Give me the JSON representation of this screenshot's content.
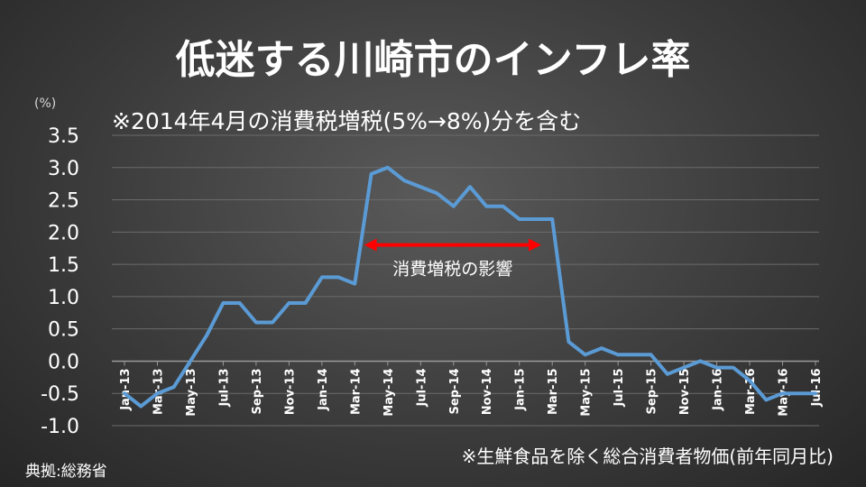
{
  "title": "低迷する川崎市のインフレ率",
  "subtitle": "※2014年4月の消費税増税(5%→8%)分を含む",
  "y_unit": "(%)",
  "source": "典拠:総務省",
  "note": "※生鮮食品を除く総合消費者物価(前年同月比)",
  "colors": {
    "line": "#5b9bd5",
    "arrow": "#ff0000",
    "axis_text": "#ffffff",
    "grid": "#6b6b6b",
    "background": "#3a3a3a"
  },
  "chart_data": {
    "type": "line",
    "x": [
      "Jan-13",
      "Feb-13",
      "Mar-13",
      "Apr-13",
      "May-13",
      "Jun-13",
      "Jul-13",
      "Aug-13",
      "Sep-13",
      "Oct-13",
      "Nov-13",
      "Dec-13",
      "Jan-14",
      "Feb-14",
      "Mar-14",
      "Apr-14",
      "May-14",
      "Jun-14",
      "Jul-14",
      "Aug-14",
      "Sep-14",
      "Oct-14",
      "Nov-14",
      "Dec-14",
      "Jan-15",
      "Feb-15",
      "Mar-15",
      "Apr-15",
      "May-15",
      "Jun-15",
      "Jul-15",
      "Aug-15",
      "Sep-15",
      "Oct-15",
      "Nov-15",
      "Dec-15",
      "Jan-16",
      "Feb-16",
      "Mar-16",
      "Apr-16",
      "May-16",
      "Jun-16",
      "Jul-16"
    ],
    "tick_labels": [
      "Jan-13",
      "Mar-13",
      "May-13",
      "Jul-13",
      "Sep-13",
      "Nov-13",
      "Jan-14",
      "Mar-14",
      "May-14",
      "Jul-14",
      "Sep-14",
      "Nov-14",
      "Jan-15",
      "Mar-15",
      "May-15",
      "Jul-15",
      "Sep-15",
      "Nov-15",
      "Jan-16",
      "Mar-16",
      "May-16",
      "Jul-16"
    ],
    "series": [
      {
        "values": [
          -0.5,
          -0.7,
          -0.5,
          -0.4,
          0.0,
          0.4,
          0.9,
          0.9,
          0.6,
          0.6,
          0.9,
          0.9,
          1.3,
          1.3,
          1.2,
          2.9,
          3.0,
          2.8,
          2.7,
          2.6,
          2.4,
          2.7,
          2.4,
          2.4,
          2.2,
          2.2,
          2.2,
          0.3,
          0.1,
          0.2,
          0.1,
          0.1,
          0.1,
          -0.2,
          -0.1,
          0.0,
          -0.1,
          -0.1,
          -0.3,
          -0.6,
          -0.5,
          -0.5,
          -0.5
        ]
      }
    ],
    "ylim": [
      -1.0,
      3.5
    ],
    "y_ticks": [
      "3.5",
      "3.0",
      "2.5",
      "2.0",
      "1.5",
      "1.0",
      "0.5",
      "0.0",
      "-0.5",
      "-1.0"
    ],
    "y_tick_values": [
      3.5,
      3.0,
      2.5,
      2.0,
      1.5,
      1.0,
      0.5,
      0.0,
      -0.5,
      -1.0
    ],
    "grid": true,
    "annotation": {
      "text": "消費増税の影響",
      "from": "Apr-14",
      "to": "Feb-15",
      "y": 1.8
    }
  }
}
